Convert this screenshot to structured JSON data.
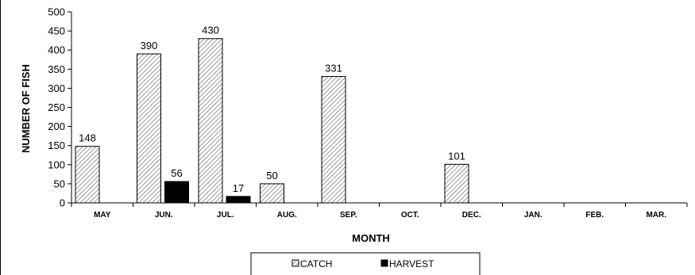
{
  "chart_data": {
    "type": "bar",
    "xlabel": "MONTH",
    "ylabel": "NUMBER OF FISH",
    "ylim": [
      0,
      500
    ],
    "yticks": [
      0,
      50,
      100,
      150,
      200,
      250,
      300,
      350,
      400,
      450,
      500
    ],
    "categories": [
      "MAY",
      "JUN.",
      "JUL.",
      "AUG.",
      "SEP.",
      "OCT.",
      "DEC.",
      "JAN.",
      "FEB.",
      "MAR."
    ],
    "series": [
      {
        "name": "CATCH",
        "values": [
          148,
          390,
          430,
          50,
          331,
          null,
          101,
          null,
          null,
          null
        ],
        "fill": "hatched",
        "color": "#808080"
      },
      {
        "name": "HARVEST",
        "values": [
          null,
          56,
          17,
          null,
          null,
          null,
          null,
          null,
          null,
          null
        ],
        "fill": "solid",
        "color": "#000000"
      }
    ],
    "data_labels": true,
    "grid": false,
    "legend": "bottom-center"
  }
}
